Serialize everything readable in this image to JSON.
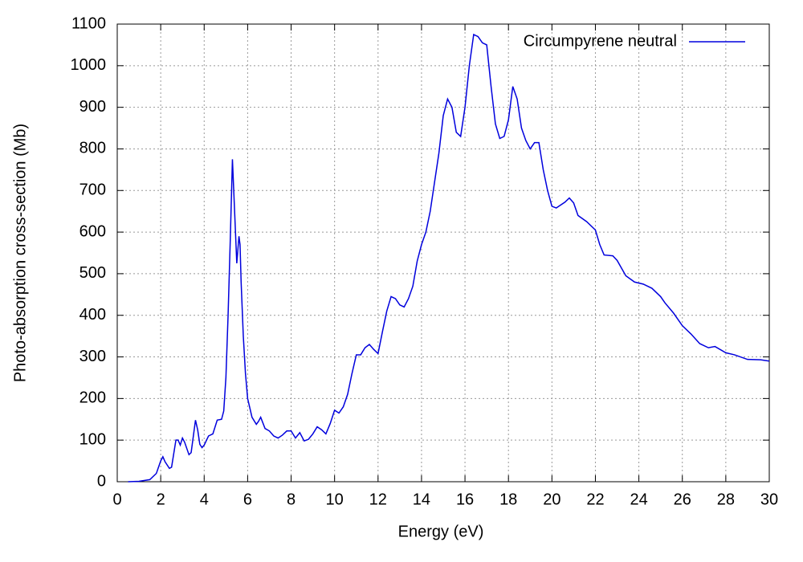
{
  "chart_data": {
    "type": "line",
    "xlabel": "Energy (eV)",
    "ylabel": "Photo-absorption cross-section (Mb)",
    "xlim": [
      0,
      30
    ],
    "ylim": [
      0,
      1100
    ],
    "xticks": [
      0,
      2,
      4,
      6,
      8,
      10,
      12,
      14,
      16,
      18,
      20,
      22,
      24,
      26,
      28,
      30
    ],
    "yticks": [
      0,
      100,
      200,
      300,
      400,
      500,
      600,
      700,
      800,
      900,
      1000,
      1100
    ],
    "grid": true,
    "legend": "top-right",
    "x": [
      0.5,
      1.0,
      1.5,
      1.8,
      2.0,
      2.1,
      2.2,
      2.4,
      2.5,
      2.7,
      2.8,
      2.9,
      3.0,
      3.1,
      3.3,
      3.4,
      3.6,
      3.7,
      3.8,
      3.9,
      4.0,
      4.2,
      4.4,
      4.6,
      4.8,
      4.9,
      5.0,
      5.1,
      5.2,
      5.3,
      5.4,
      5.5,
      5.6,
      5.65,
      5.7,
      5.8,
      5.9,
      6.0,
      6.2,
      6.4,
      6.5,
      6.6,
      6.8,
      7.0,
      7.2,
      7.4,
      7.6,
      7.8,
      8.0,
      8.2,
      8.4,
      8.6,
      8.8,
      9.0,
      9.2,
      9.4,
      9.6,
      9.8,
      10.0,
      10.2,
      10.4,
      10.6,
      10.8,
      11.0,
      11.2,
      11.4,
      11.6,
      11.8,
      12.0,
      12.2,
      12.4,
      12.6,
      12.8,
      13.0,
      13.2,
      13.4,
      13.6,
      13.8,
      14.0,
      14.2,
      14.4,
      14.6,
      14.8,
      15.0,
      15.2,
      15.4,
      15.6,
      15.8,
      16.0,
      16.2,
      16.4,
      16.6,
      16.8,
      17.0,
      17.2,
      17.4,
      17.6,
      17.8,
      18.0,
      18.2,
      18.4,
      18.6,
      18.8,
      19.0,
      19.2,
      19.4,
      19.6,
      19.8,
      20.0,
      20.2,
      20.4,
      20.6,
      20.8,
      21.0,
      21.2,
      21.6,
      22.0,
      22.2,
      22.4,
      22.8,
      23.0,
      23.4,
      23.8,
      24.2,
      24.6,
      25.0,
      25.2,
      25.6,
      26.0,
      26.4,
      26.8,
      27.2,
      27.5,
      28.0,
      28.4,
      29.0,
      29.6,
      30.0
    ],
    "series": [
      {
        "name": "Circumpyrene neutral",
        "color": "#0000dd",
        "values": [
          0,
          1,
          5,
          20,
          50,
          60,
          48,
          32,
          35,
          100,
          100,
          88,
          105,
          95,
          65,
          70,
          148,
          125,
          90,
          82,
          88,
          110,
          115,
          148,
          150,
          170,
          250,
          400,
          580,
          775,
          650,
          525,
          590,
          570,
          480,
          350,
          260,
          200,
          155,
          138,
          145,
          155,
          128,
          122,
          110,
          105,
          112,
          122,
          122,
          105,
          118,
          98,
          102,
          115,
          132,
          125,
          115,
          140,
          172,
          165,
          180,
          210,
          260,
          305,
          305,
          322,
          330,
          318,
          308,
          360,
          410,
          445,
          440,
          425,
          420,
          440,
          470,
          530,
          570,
          600,
          650,
          720,
          790,
          880,
          920,
          900,
          840,
          830,
          900,
          1000,
          1075,
          1070,
          1055,
          1050,
          950,
          860,
          825,
          830,
          870,
          950,
          920,
          850,
          820,
          800,
          815,
          815,
          750,
          700,
          662,
          658,
          665,
          672,
          682,
          670,
          640,
          625,
          605,
          570,
          545,
          543,
          532,
          495,
          480,
          475,
          465,
          445,
          430,
          405,
          375,
          355,
          332,
          322,
          325,
          310,
          305,
          294,
          293,
          290
        ]
      }
    ]
  }
}
